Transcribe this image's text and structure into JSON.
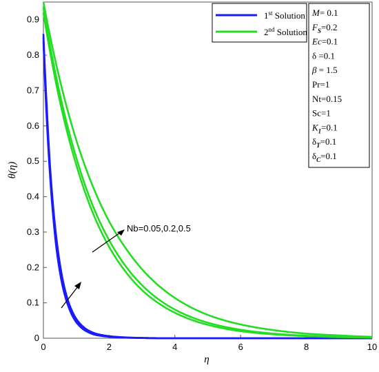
{
  "chart_data": {
    "type": "line",
    "xlabel": "η",
    "ylabel": "θ(η)",
    "xlim": [
      0,
      10
    ],
    "ylim": [
      0,
      0.95
    ],
    "x_ticks": [
      "0",
      "2",
      "4",
      "6",
      "8",
      "10"
    ],
    "y_ticks": [
      "0",
      "0.1",
      "0.2",
      "0.3",
      "0.4",
      "0.5",
      "0.6",
      "0.7",
      "0.8",
      "0.9"
    ],
    "grid": false,
    "legend_position": "top-right",
    "legend": [
      {
        "base": "1",
        "sup": "st",
        "text": " Solution",
        "color": "#1a1aff"
      },
      {
        "base": "2",
        "sup": "nd",
        "text": " Solution",
        "color": "#22dd22"
      }
    ],
    "series": [
      {
        "name": "1st Solution",
        "color": "#1a1aff",
        "samples": [
          {
            "x": [
              0,
              0.1,
              0.2,
              0.3,
              0.4,
              0.6,
              0.8,
              1.0,
              1.3,
              1.6,
              2.0,
              2.5,
              3.0,
              4.0,
              6.0,
              10.0
            ],
            "y": [
              0.84,
              0.62,
              0.46,
              0.34,
              0.25,
              0.14,
              0.08,
              0.045,
              0.02,
              0.009,
              0.004,
              0.0015,
              0.0006,
              0.0001,
              0,
              0
            ]
          },
          {
            "x": [
              0,
              0.1,
              0.2,
              0.3,
              0.4,
              0.6,
              0.8,
              1.0,
              1.3,
              1.6,
              2.0,
              2.5,
              3.0,
              4.0,
              6.0,
              10.0
            ],
            "y": [
              0.85,
              0.64,
              0.475,
              0.355,
              0.265,
              0.15,
              0.086,
              0.05,
              0.023,
              0.011,
              0.005,
              0.002,
              0.0008,
              0.0001,
              0,
              0
            ]
          },
          {
            "x": [
              0,
              0.1,
              0.2,
              0.3,
              0.4,
              0.6,
              0.8,
              1.0,
              1.3,
              1.6,
              2.0,
              2.5,
              3.0,
              4.0,
              6.0,
              10.0
            ],
            "y": [
              0.86,
              0.66,
              0.49,
              0.37,
              0.28,
              0.16,
              0.093,
              0.055,
              0.026,
              0.013,
              0.006,
              0.0025,
              0.001,
              0.0002,
              0,
              0
            ]
          }
        ]
      },
      {
        "name": "2nd Solution",
        "color": "#22dd22",
        "samples": [
          {
            "x": [
              0,
              0.5,
              1.0,
              1.5,
              2.0,
              2.5,
              3.0,
              4.0,
              5.0,
              6.0,
              7.0,
              8.0,
              9.0,
              10.0
            ],
            "y": [
              0.92,
              0.67,
              0.49,
              0.355,
              0.258,
              0.188,
              0.136,
              0.072,
              0.038,
              0.02,
              0.011,
              0.006,
              0.003,
              0.002
            ]
          },
          {
            "x": [
              0,
              0.5,
              1.0,
              1.5,
              2.0,
              2.5,
              3.0,
              4.0,
              5.0,
              6.0,
              7.0,
              8.0,
              9.0,
              10.0
            ],
            "y": [
              0.935,
              0.69,
              0.51,
              0.375,
              0.277,
              0.204,
              0.15,
              0.081,
              0.044,
              0.024,
              0.013,
              0.007,
              0.004,
              0.002
            ]
          },
          {
            "x": [
              0,
              0.5,
              1.0,
              1.5,
              2.0,
              2.5,
              3.0,
              4.0,
              5.0,
              6.0,
              7.0,
              8.0,
              9.0,
              10.0
            ],
            "y": [
              0.95,
              0.73,
              0.56,
              0.43,
              0.33,
              0.255,
              0.195,
              0.114,
              0.066,
              0.039,
              0.023,
              0.013,
              0.008,
              0.004
            ]
          }
        ]
      }
    ],
    "parameters": [
      {
        "sym": "M",
        "sub": "",
        "val": "= 0.1",
        "italic": true
      },
      {
        "sym": "F",
        "sub": "S",
        "val": "=0.2",
        "italic": true
      },
      {
        "sym": "Ec",
        "sub": "",
        "val": "=0.1",
        "italic": true
      },
      {
        "sym": "δ",
        "sub": "",
        "val": " =0.1",
        "italic": false
      },
      {
        "sym": "β",
        "sub": "",
        "val": " = 1.5",
        "italic": true
      },
      {
        "sym": "Pr",
        "sub": "",
        "val": "=1",
        "italic": false
      },
      {
        "sym": "Nt",
        "sub": "",
        "val": "=0.15",
        "italic": false
      },
      {
        "sym": "Sc",
        "sub": "",
        "val": "=1",
        "italic": false
      },
      {
        "sym": "K",
        "sub": "1",
        "val": "=0.1",
        "italic": true
      },
      {
        "sym": "δ",
        "sub": "T",
        "val": "=0.1",
        "italic": false
      },
      {
        "sym": "δ",
        "sub": "C",
        "val": "=0.1",
        "italic": false
      }
    ],
    "annotation": {
      "text": "Nb=0.05,0.2,0.5"
    }
  }
}
